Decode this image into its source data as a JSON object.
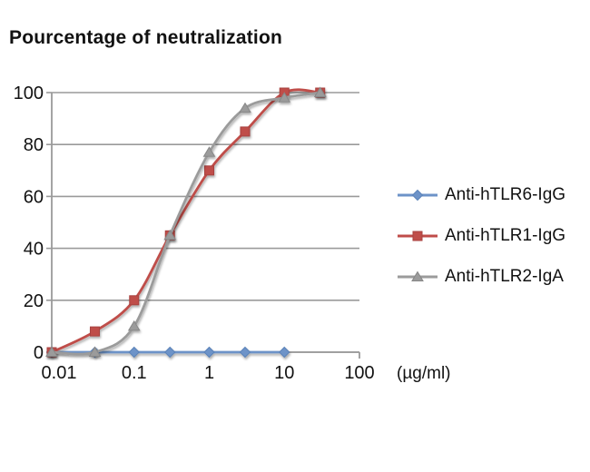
{
  "title": "Pourcentage of neutralization",
  "chart_data": {
    "type": "line",
    "title": "Pourcentage of neutralization",
    "xlabel": "(µg/ml)",
    "ylabel": "",
    "x_scale": "log",
    "line_style": "smooth",
    "grid": "horizontal",
    "legend_position": "right",
    "x_axis": {
      "min": 0.008,
      "max": 100,
      "ticks": [
        0.01,
        0.1,
        1,
        10,
        100
      ],
      "tick_labels": [
        "0.01",
        "0.1",
        "1",
        "10",
        "100"
      ],
      "unit_label": "(µg/ml)"
    },
    "y_axis": {
      "min": 0,
      "max": 100,
      "ticks": [
        0,
        20,
        40,
        60,
        80,
        100
      ],
      "tick_labels": [
        "0",
        "20",
        "40",
        "60",
        "80",
        "100"
      ]
    },
    "series": [
      {
        "name": "Anti-hTLR6-IgG",
        "color": "#6d93c8",
        "edge_color": "#5a82b8",
        "marker": "diamond",
        "x": [
          0.008,
          0.03,
          0.1,
          0.3,
          1,
          3,
          10
        ],
        "y": [
          0,
          0,
          0,
          0,
          0,
          0,
          0
        ]
      },
      {
        "name": "Anti-hTLR1-IgG",
        "color": "#bf4d49",
        "edge_color": "#a8423f",
        "marker": "square",
        "x": [
          0.008,
          0.03,
          0.1,
          0.3,
          1,
          3,
          10,
          30
        ],
        "y": [
          0,
          8,
          20,
          45,
          70,
          85,
          100,
          100
        ]
      },
      {
        "name": "Anti-hTLR2-IgA",
        "color": "#9b9b9b",
        "edge_color": "#878787",
        "marker": "triangle",
        "x": [
          0.008,
          0.03,
          0.1,
          0.3,
          1,
          3,
          10,
          30
        ],
        "y": [
          0,
          0,
          10,
          45,
          77,
          94,
          98,
          100
        ]
      }
    ],
    "axis_color": "#9a9a9a",
    "text_color": "#121212"
  }
}
